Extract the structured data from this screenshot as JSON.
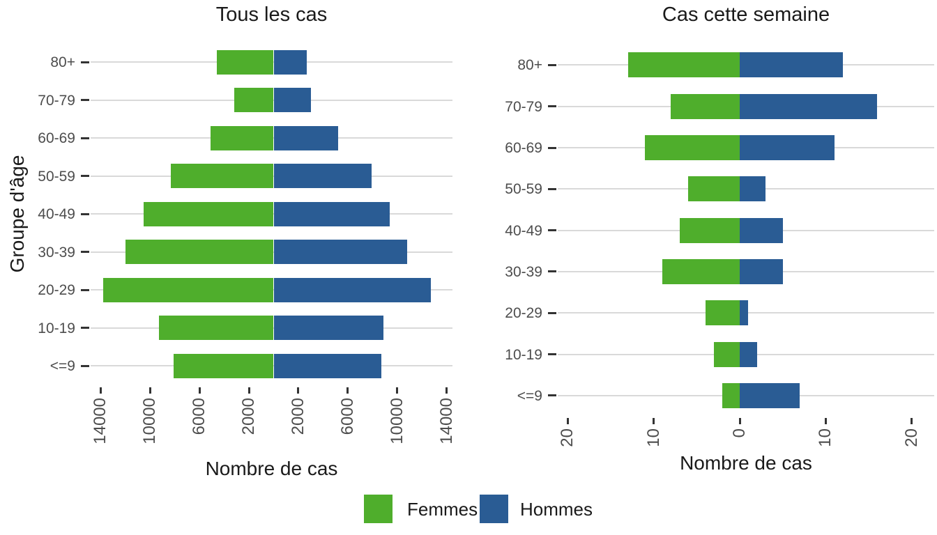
{
  "figure": {
    "legend": {
      "position": "bottom-center",
      "items": [
        {
          "label": "Femmes",
          "color": "#4FAE2C"
        },
        {
          "label": "Hommes",
          "color": "#2A5C94"
        }
      ]
    },
    "colors": {
      "femmes": "#4FAE2C",
      "hommes": "#2A5C94",
      "gridline": "#D9D9D9",
      "tick": "#333333",
      "axis_text": "#4D4D4D",
      "title_text": "#1A1A1A",
      "background": "#FFFFFF"
    }
  },
  "chart_data": [
    {
      "type": "bar",
      "variant": "population-pyramid-horizontal",
      "title": "Tous les cas",
      "xlabel": "Nombre de cas",
      "ylabel": "Groupe d'âge",
      "categories": [
        "80+",
        "70-79",
        "60-69",
        "50-59",
        "40-49",
        "30-39",
        "20-29",
        "10-19",
        "<=9"
      ],
      "series": [
        {
          "name": "Femmes",
          "side": "left",
          "values": [
            4600,
            3200,
            5100,
            8300,
            10500,
            12000,
            13800,
            9300,
            8100
          ]
        },
        {
          "name": "Hommes",
          "side": "right",
          "values": [
            2700,
            3000,
            5200,
            7900,
            9400,
            10800,
            12700,
            8900,
            8700
          ]
        }
      ],
      "x_ticks": [
        -14000,
        -10000,
        -6000,
        -2000,
        2000,
        6000,
        10000,
        14000
      ],
      "x_tick_labels": [
        "14000",
        "10000",
        "6000",
        "2000",
        "2000",
        "6000",
        "10000",
        "14000"
      ],
      "xlim": [
        -14650,
        14650
      ],
      "grid": "horizontal-major-only",
      "legend_position": "bottom"
    },
    {
      "type": "bar",
      "variant": "population-pyramid-horizontal",
      "title": "Cas cette semaine",
      "xlabel": "Nombre de cas",
      "ylabel": null,
      "categories": [
        "80+",
        "70-79",
        "60-69",
        "50-59",
        "40-49",
        "30-39",
        "20-29",
        "10-19",
        "<=9"
      ],
      "series": [
        {
          "name": "Femmes",
          "side": "left",
          "values": [
            13,
            8,
            11,
            6,
            7,
            9,
            4,
            3,
            2
          ]
        },
        {
          "name": "Hommes",
          "side": "right",
          "values": [
            12,
            16,
            11,
            3,
            5,
            5,
            1,
            2,
            7
          ]
        }
      ],
      "x_ticks": [
        -20,
        -10,
        0,
        10,
        20
      ],
      "x_tick_labels": [
        "20",
        "10",
        "0",
        "10",
        "20"
      ],
      "xlim": [
        -22,
        22
      ],
      "grid": "horizontal-major-only",
      "legend_position": "bottom"
    }
  ]
}
